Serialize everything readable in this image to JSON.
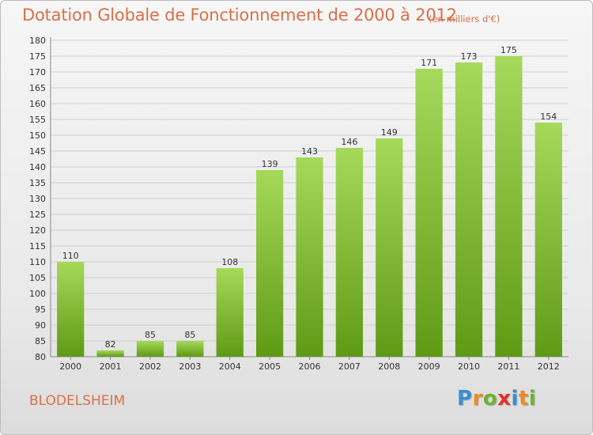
{
  "title": "Dotation Globale de Fonctionnement de 2000 à 2012",
  "unit_note": "(en milliers d'€)",
  "commune": "BLODELSHEIM",
  "logo": {
    "letters": [
      "P",
      "r",
      "o",
      "x",
      "i",
      "t",
      "i"
    ],
    "colors": [
      "#3a8fd1",
      "#f08a1c",
      "#6cb52d",
      "#e2312b",
      "#3a8fd1",
      "#f08a1c",
      "#6cb52d"
    ]
  },
  "colors": {
    "bar_top": "#a6d95a",
    "bar_bottom": "#5f9a15",
    "grid": "#cfcfcf",
    "accent": "#d8704a"
  },
  "chart_data": {
    "type": "bar",
    "categories": [
      "2000",
      "2001",
      "2002",
      "2003",
      "2004",
      "2005",
      "2006",
      "2007",
      "2008",
      "2009",
      "2010",
      "2011",
      "2012"
    ],
    "values": [
      110,
      82,
      85,
      85,
      108,
      139,
      143,
      146,
      149,
      171,
      173,
      175,
      154
    ],
    "ylim": [
      80,
      180
    ],
    "ytick_step": 5,
    "grid": true
  }
}
